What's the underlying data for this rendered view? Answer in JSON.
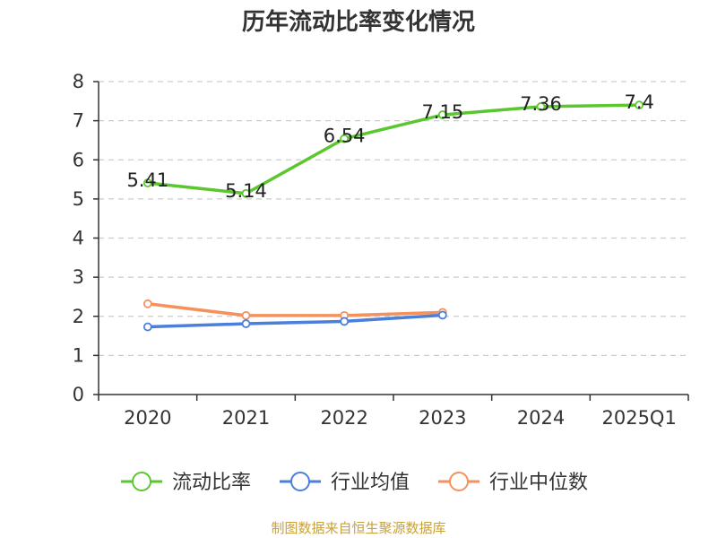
{
  "chart_data": {
    "type": "line",
    "title": "历年流动比率变化情况",
    "categories": [
      "2020",
      "2021",
      "2022",
      "2023",
      "2024",
      "2025Q1"
    ],
    "ylim": [
      0,
      8
    ],
    "yticks": [
      "0",
      "1",
      "2",
      "3",
      "4",
      "5",
      "6",
      "7",
      "8"
    ],
    "grid": true,
    "legend_position": "bottom",
    "series": [
      {
        "name": "流动比率",
        "color": "#5bc72e",
        "values": [
          5.41,
          5.14,
          6.54,
          7.15,
          7.36,
          7.4
        ],
        "labels": [
          "5.41",
          "5.14",
          "6.54",
          "7.15",
          "7.36",
          "7.4"
        ]
      },
      {
        "name": "行业均值",
        "color": "#4a7fdc",
        "values": [
          1.73,
          1.81,
          1.87,
          2.03,
          null,
          null
        ]
      },
      {
        "name": "行业中位数",
        "color": "#f5915c",
        "values": [
          2.32,
          2.02,
          2.02,
          2.1,
          null,
          null
        ]
      }
    ]
  },
  "footer": {
    "source": "制图数据来自恒生聚源数据库"
  }
}
